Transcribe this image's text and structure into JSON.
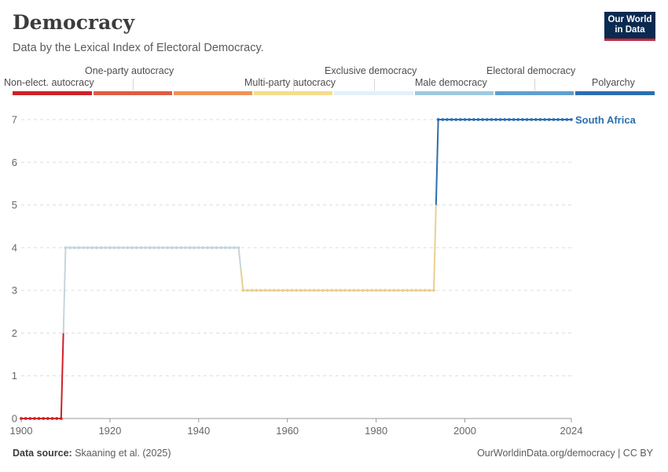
{
  "header": {
    "title": "Democracy",
    "subtitle": "Data by the Lexical Index of Electoral Democracy.",
    "logo_line1": "Our World",
    "logo_line2": "in Data"
  },
  "legend": [
    {
      "label": "Non-elect. autocracy",
      "color": "#cf2026"
    },
    {
      "label": "One-party autocracy",
      "color": "#e05a44"
    },
    {
      "label": "Multi-party autocracy",
      "color": "#ef9355"
    },
    {
      "label": "Exclusive democracy",
      "color": "#f6dc8c"
    },
    {
      "label": "Male democracy",
      "color": "#e3f0f8"
    },
    {
      "label": "Electoral democracy",
      "color": "#9ec9e0"
    },
    {
      "label": "Polyarchy",
      "color": "#5f9fcf"
    },
    {
      "label": "",
      "color": "#2b6eaf"
    }
  ],
  "chart_data": {
    "type": "line",
    "title": "Democracy",
    "xlabel": "",
    "ylabel": "",
    "xlim": [
      1900,
      2024
    ],
    "ylim": [
      0,
      7
    ],
    "x_ticks": [
      "1900",
      "1920",
      "1940",
      "1960",
      "1980",
      "2000",
      "2024"
    ],
    "y_ticks": [
      "0",
      "1",
      "2",
      "3",
      "4",
      "5",
      "6",
      "7"
    ],
    "series": [
      {
        "name": "South Africa",
        "segments": [
          {
            "start": 1900,
            "end": 1909,
            "value": 0
          },
          {
            "start": 1910,
            "end": 1949,
            "value": 4
          },
          {
            "start": 1950,
            "end": 1993,
            "value": 3
          },
          {
            "start": 1994,
            "end": 2024,
            "value": 7
          }
        ]
      }
    ],
    "value_colors": {
      "0": "#cf2026",
      "3": "#e9d08f",
      "4": "#c5d5dc",
      "7": "#2b6eaf"
    }
  },
  "footer": {
    "source_label": "Data source:",
    "source_text": "Skaaning et al. (2025)",
    "url_text": "OurWorldinData.org/democracy | CC BY"
  }
}
